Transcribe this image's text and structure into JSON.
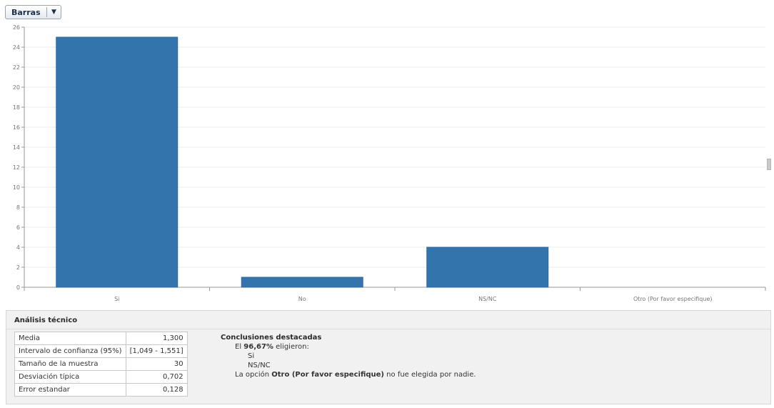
{
  "chart_type_select": {
    "label": "Barras",
    "arrow": "▼"
  },
  "chart_data": {
    "type": "bar",
    "categories": [
      "Si",
      "No",
      "NS/NC",
      "Otro (Por favor especifique)"
    ],
    "values": [
      25,
      1,
      4,
      0
    ],
    "title": "",
    "xlabel": "",
    "ylabel": "",
    "ylim": [
      0,
      26
    ],
    "yticks": [
      0,
      2,
      4,
      6,
      8,
      10,
      12,
      14,
      16,
      18,
      20,
      22,
      24,
      26
    ],
    "grid": true,
    "bar_color": "#3474ad"
  },
  "analysis": {
    "title": "Análisis técnico",
    "stats": [
      {
        "label": "Media",
        "value": "1,300"
      },
      {
        "label": "Intervalo de confianza (95%)",
        "value": "[1,049 - 1,551]"
      },
      {
        "label": "Tamaño de la muestra",
        "value": "30"
      },
      {
        "label": "Desviación típica",
        "value": "0,702"
      },
      {
        "label": "Error estandar",
        "value": "0,128"
      }
    ],
    "conclusions": {
      "title": "Conclusiones destacadas",
      "line1_pre": "El ",
      "line1_bold": "96,67%",
      "line1_post": " eligieron:",
      "options": [
        "Si",
        "NS/NC"
      ],
      "line2_pre": "La opción ",
      "line2_bold": "Otro (Por favor especifique)",
      "line2_post": " no fue elegida por nadie."
    }
  }
}
